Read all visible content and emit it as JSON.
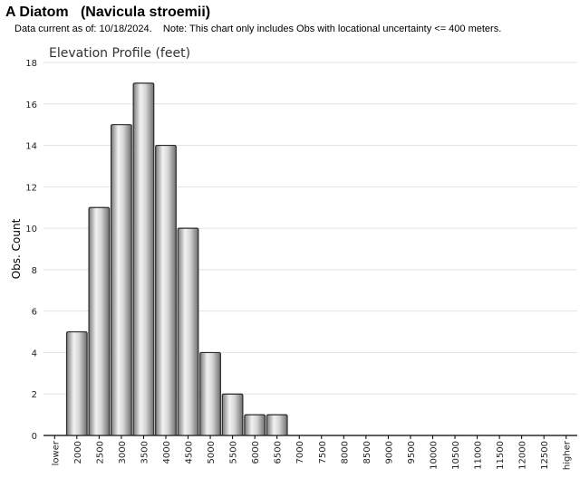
{
  "header": {
    "title": "A Diatom   (Navicula stroemii)",
    "note": "Data current as of: 10/18/2024.    Note: This chart only includes Obs with locational uncertainty <= 400 meters."
  },
  "chart_data": {
    "type": "bar",
    "title": "Elevation Profile (feet)",
    "xlabel": "",
    "ylabel": "Obs. Count",
    "ylim": [
      0,
      18
    ],
    "yticks": [
      0,
      2,
      4,
      6,
      8,
      10,
      12,
      14,
      16,
      18
    ],
    "grid": true,
    "categories": [
      "lower",
      "2000",
      "2500",
      "3000",
      "3500",
      "4000",
      "4500",
      "5000",
      "5500",
      "6000",
      "6500",
      "7000",
      "7500",
      "8000",
      "8500",
      "9000",
      "9500",
      "10000",
      "10500",
      "11000",
      "11500",
      "12000",
      "12500",
      "higher"
    ],
    "values": [
      0,
      5,
      11,
      15,
      17,
      14,
      10,
      4,
      2,
      1,
      1,
      0,
      0,
      0,
      0,
      0,
      0,
      0,
      0,
      0,
      0,
      0,
      0,
      0
    ],
    "bar_color": "#b8b8b8"
  }
}
